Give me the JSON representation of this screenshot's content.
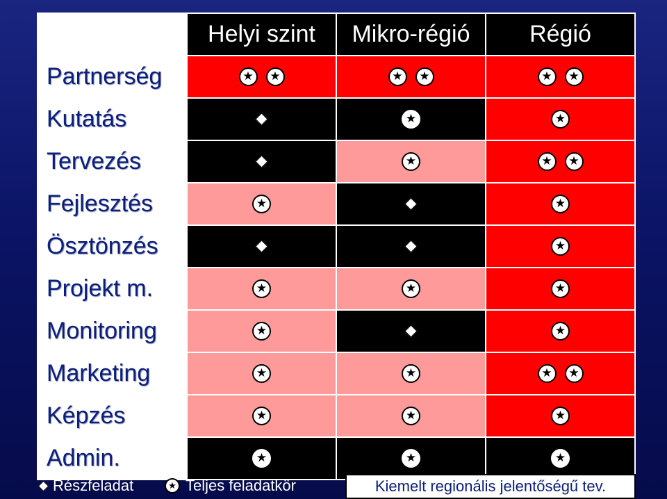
{
  "headers": [
    "Helyi szint",
    "Mikro-régió",
    "Régió"
  ],
  "rows": [
    {
      "label": "Partnerség",
      "cells": [
        {
          "bg": "red",
          "marks": [
            "star",
            "star"
          ]
        },
        {
          "bg": "red",
          "marks": [
            "star",
            "star"
          ]
        },
        {
          "bg": "red",
          "marks": [
            "star",
            "star"
          ]
        }
      ]
    },
    {
      "label": "Kutatás",
      "cells": [
        {
          "bg": "black",
          "marks": [
            "diamond"
          ]
        },
        {
          "bg": "black",
          "marks": [
            "star"
          ]
        },
        {
          "bg": "red",
          "marks": [
            "star"
          ]
        }
      ]
    },
    {
      "label": "Tervezés",
      "cells": [
        {
          "bg": "black",
          "marks": [
            "diamond"
          ]
        },
        {
          "bg": "pink",
          "marks": [
            "star"
          ]
        },
        {
          "bg": "red",
          "marks": [
            "star",
            "star"
          ]
        }
      ]
    },
    {
      "label": "Fejlesztés",
      "cells": [
        {
          "bg": "pink",
          "marks": [
            "star"
          ]
        },
        {
          "bg": "black",
          "marks": [
            "diamond"
          ]
        },
        {
          "bg": "red",
          "marks": [
            "star"
          ]
        }
      ]
    },
    {
      "label": "Ösztönzés",
      "cells": [
        {
          "bg": "black",
          "marks": [
            "diamond"
          ]
        },
        {
          "bg": "black",
          "marks": [
            "diamond"
          ]
        },
        {
          "bg": "red",
          "marks": [
            "star"
          ]
        }
      ]
    },
    {
      "label": "Projekt m.",
      "cells": [
        {
          "bg": "pink",
          "marks": [
            "star"
          ]
        },
        {
          "bg": "pink",
          "marks": [
            "star"
          ]
        },
        {
          "bg": "red",
          "marks": [
            "star"
          ]
        }
      ]
    },
    {
      "label": "Monitoring",
      "cells": [
        {
          "bg": "pink",
          "marks": [
            "star"
          ]
        },
        {
          "bg": "black",
          "marks": [
            "diamond"
          ]
        },
        {
          "bg": "red",
          "marks": [
            "star"
          ]
        }
      ]
    },
    {
      "label": "Marketing",
      "cells": [
        {
          "bg": "pink",
          "marks": [
            "star"
          ]
        },
        {
          "bg": "pink",
          "marks": [
            "star"
          ]
        },
        {
          "bg": "red",
          "marks": [
            "star",
            "star"
          ]
        }
      ]
    },
    {
      "label": "Képzés",
      "cells": [
        {
          "bg": "pink",
          "marks": [
            "star"
          ]
        },
        {
          "bg": "pink",
          "marks": [
            "star"
          ]
        },
        {
          "bg": "red",
          "marks": [
            "star"
          ]
        }
      ]
    },
    {
      "label": "Admin.",
      "cells": [
        {
          "bg": "black",
          "marks": [
            "star"
          ]
        },
        {
          "bg": "black",
          "marks": [
            "star"
          ]
        },
        {
          "bg": "black",
          "marks": [
            "star"
          ]
        }
      ]
    }
  ],
  "legend": {
    "partial": "Részfeladat",
    "full": "Teljes feladatkör",
    "highlight": "Kiemelt regionális jelentőségű tev."
  },
  "colors": {
    "red": "#ff0000",
    "black": "#000000",
    "pink": "#ff9a9a",
    "background": "#0b1466"
  }
}
